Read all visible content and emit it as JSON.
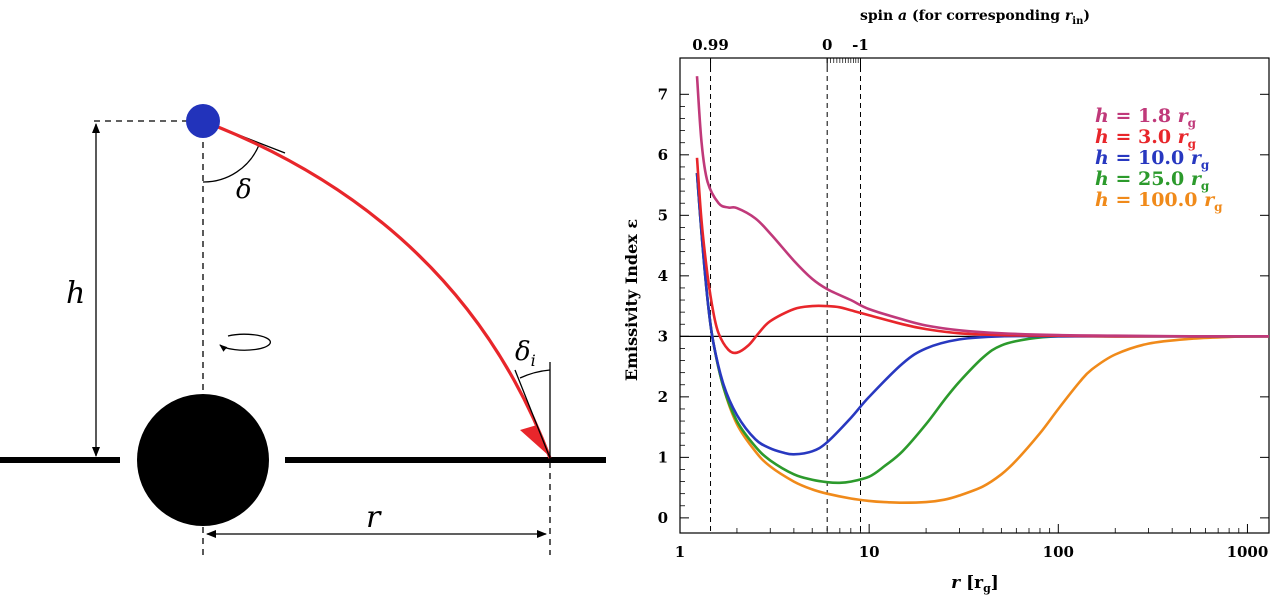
{
  "diagram": {
    "label_h": "h",
    "label_delta": "δ",
    "label_delta_i": "δ",
    "label_delta_i_sub": "i",
    "label_r": "r",
    "colors": {
      "ray": "#e8262b",
      "source": "#2233bb",
      "hole": "#000000"
    }
  },
  "chart_data": {
    "type": "line",
    "x_scale": "log",
    "xlim": [
      1,
      1300
    ],
    "ylim": [
      -0.25,
      7.6
    ],
    "xlabel": "r",
    "xlabel_unit": "[r",
    "xlabel_unit_sub": "g",
    "xlabel_unit_close": "]",
    "ylabel": "Emissivity Index ε",
    "x_ticks": [
      1,
      10,
      100,
      1000
    ],
    "x_tick_labels": [
      "1",
      "10",
      "100",
      "1000"
    ],
    "y_ticks": [
      0,
      1,
      2,
      3,
      4,
      5,
      6,
      7
    ],
    "y_tick_labels": [
      "0",
      "1",
      "2",
      "3",
      "4",
      "5",
      "6",
      "7"
    ],
    "top_axis": {
      "title_prefix": "spin ",
      "title_var": "a",
      "title_suffix": " (for corresponding ",
      "title_var2": "r",
      "title_var2_sub": "in",
      "title_close": ")",
      "ticks": [
        {
          "label": "0.99",
          "r": 1.45
        },
        {
          "label": "0",
          "r": 6.0
        },
        {
          "label": "-1",
          "r": 9.0
        }
      ]
    },
    "vlines": [
      1.45,
      6.0,
      9.0
    ],
    "hline": 3,
    "grid": false,
    "legend_position": "top-right",
    "series": [
      {
        "name": "h = 1.8 r",
        "name_var": "h",
        "name_eq": " = 1.8 ",
        "name_unit": "r",
        "name_sub": "g",
        "color": "#c0397a",
        "x": [
          1.23,
          1.3,
          1.4,
          1.6,
          1.8,
          2.0,
          2.5,
          3.0,
          4.0,
          5.0,
          6.0,
          8.0,
          10,
          15,
          20,
          30,
          50,
          100,
          200,
          500,
          1300
        ],
        "y": [
          7.3,
          6.2,
          5.55,
          5.2,
          5.13,
          5.12,
          4.95,
          4.7,
          4.25,
          3.95,
          3.78,
          3.6,
          3.45,
          3.28,
          3.18,
          3.1,
          3.05,
          3.02,
          3.01,
          3.0,
          3.0
        ]
      },
      {
        "name": "h = 3.0 r",
        "name_var": "h",
        "name_eq": " = 3.0 ",
        "name_unit": "r",
        "name_sub": "g",
        "color": "#e8262b",
        "x": [
          1.23,
          1.3,
          1.4,
          1.5,
          1.6,
          1.8,
          2.0,
          2.3,
          2.6,
          3.0,
          4.0,
          5.0,
          6.0,
          7.0,
          8.0,
          10,
          15,
          20,
          30,
          50,
          100,
          200,
          500,
          1300
        ],
        "y": [
          5.95,
          4.9,
          4.0,
          3.4,
          3.05,
          2.78,
          2.73,
          2.85,
          3.05,
          3.25,
          3.45,
          3.5,
          3.5,
          3.48,
          3.43,
          3.35,
          3.2,
          3.12,
          3.05,
          3.02,
          3.01,
          3.0,
          3.0,
          3.0
        ]
      },
      {
        "name": "h = 10.0 r",
        "name_var": "h",
        "name_eq": " = 10.0 ",
        "name_unit": "r",
        "name_sub": "g",
        "color": "#2838c0",
        "x": [
          1.23,
          1.3,
          1.4,
          1.5,
          1.7,
          2.0,
          2.5,
          3.0,
          3.5,
          4.0,
          5.0,
          6.0,
          8.0,
          10,
          15,
          20,
          30,
          50,
          100,
          200,
          500,
          1300
        ],
        "y": [
          5.7,
          4.7,
          3.6,
          2.9,
          2.2,
          1.7,
          1.3,
          1.15,
          1.08,
          1.05,
          1.1,
          1.25,
          1.65,
          2.0,
          2.55,
          2.8,
          2.95,
          3.0,
          3.0,
          3.0,
          3.0,
          3.0
        ]
      },
      {
        "name": "h = 25.0 r",
        "name_var": "h",
        "name_eq": " = 25.0 ",
        "name_unit": "r",
        "name_sub": "g",
        "color": "#2c9a2c",
        "x": [
          1.23,
          1.3,
          1.4,
          1.5,
          1.7,
          2.0,
          2.5,
          3.0,
          4.0,
          5.0,
          6.0,
          7.0,
          8.0,
          10,
          12,
          15,
          20,
          25,
          30,
          40,
          50,
          70,
          100,
          200,
          500,
          1300
        ],
        "y": [
          5.7,
          4.7,
          3.6,
          2.9,
          2.15,
          1.6,
          1.18,
          0.95,
          0.72,
          0.63,
          0.59,
          0.58,
          0.6,
          0.68,
          0.85,
          1.1,
          1.55,
          1.95,
          2.25,
          2.65,
          2.85,
          2.96,
          3.0,
          3.0,
          3.0,
          3.0
        ]
      },
      {
        "name": "h = 100.0 r",
        "name_var": "h",
        "name_eq": " = 100.0 ",
        "name_unit": "r",
        "name_sub": "g",
        "color": "#f08a1a",
        "x": [
          1.23,
          1.3,
          1.4,
          1.5,
          1.7,
          2.0,
          2.5,
          3.0,
          4.0,
          5.0,
          6.0,
          8.0,
          10,
          12,
          15,
          20,
          25,
          30,
          40,
          50,
          60,
          80,
          100,
          130,
          150,
          200,
          300,
          500,
          800,
          1300
        ],
        "y": [
          5.7,
          4.7,
          3.6,
          2.9,
          2.15,
          1.55,
          1.1,
          0.85,
          0.6,
          0.47,
          0.4,
          0.32,
          0.28,
          0.26,
          0.25,
          0.26,
          0.3,
          0.37,
          0.52,
          0.72,
          0.95,
          1.4,
          1.8,
          2.25,
          2.45,
          2.7,
          2.88,
          2.96,
          2.99,
          3.0
        ]
      }
    ]
  }
}
